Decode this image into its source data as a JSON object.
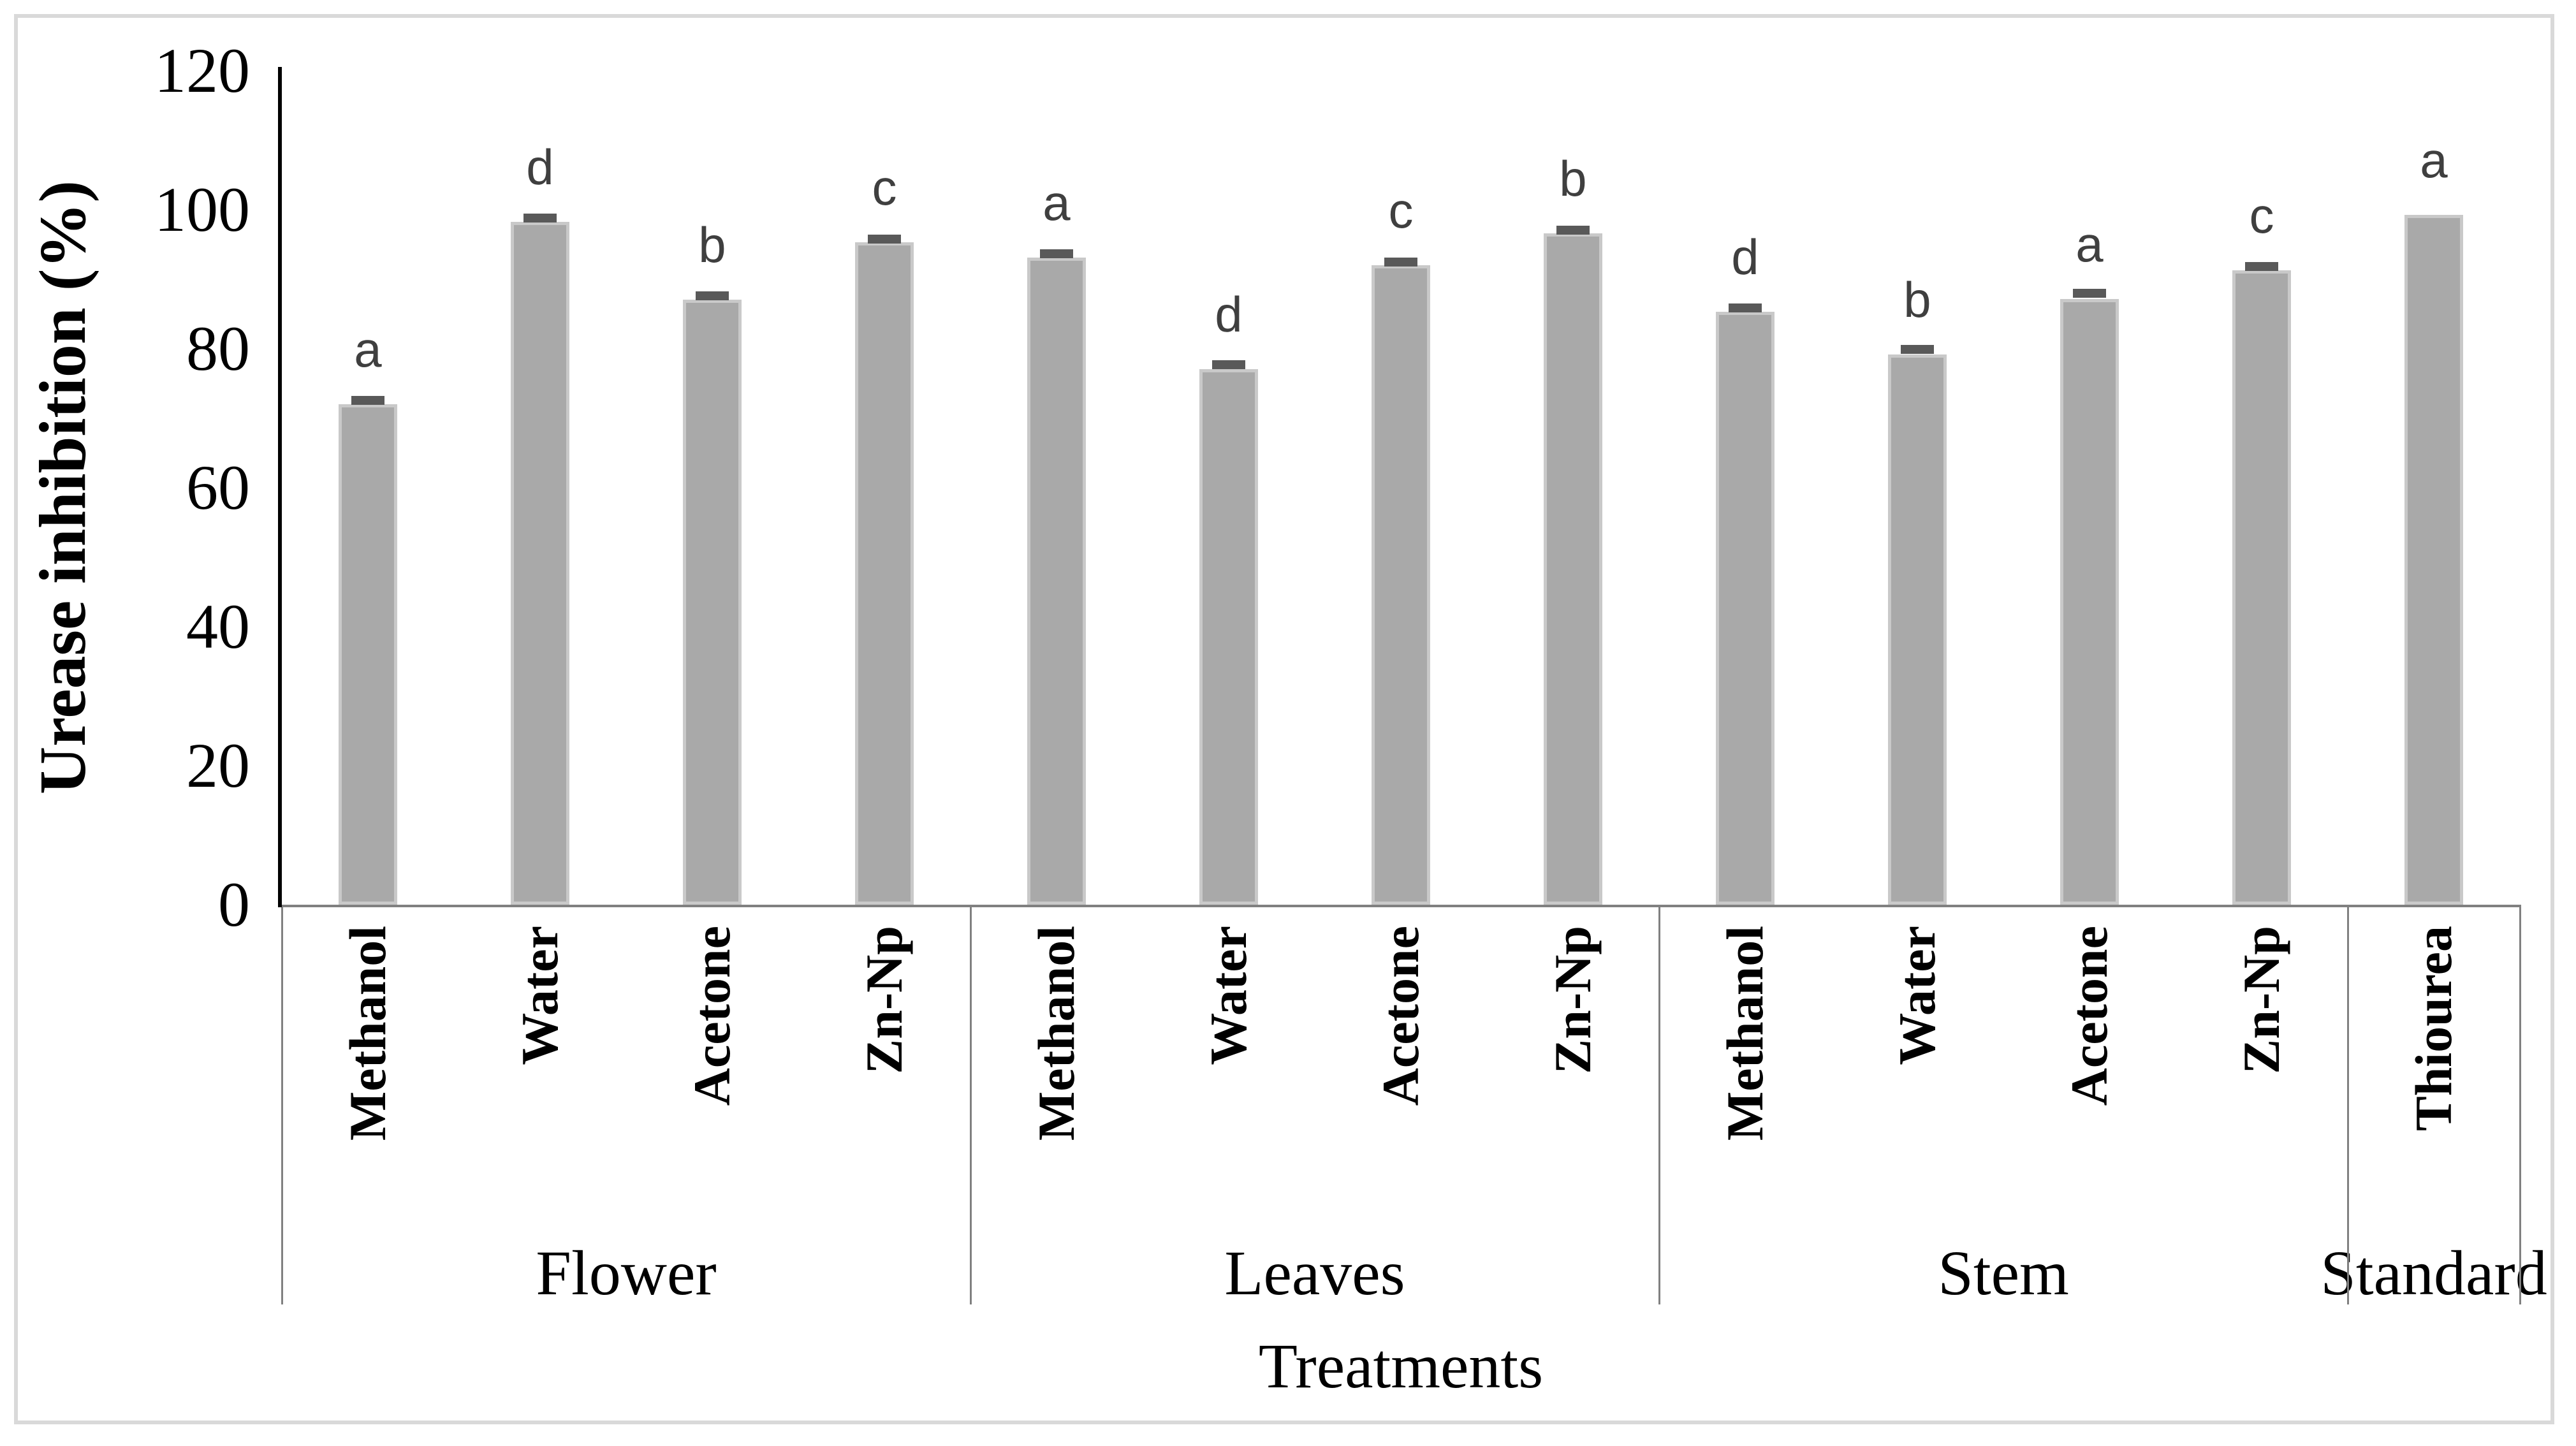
{
  "figure": {
    "background": "#ffffff",
    "border_color": "#d9d9d9"
  },
  "y_axis": {
    "title": "Urease inhibition (%)",
    "ticks": [
      "0",
      "20",
      "40",
      "60",
      "80",
      "100",
      "120"
    ],
    "tick_values": [
      0,
      20,
      40,
      60,
      80,
      100,
      120
    ],
    "min": 0,
    "max": 120
  },
  "x_axis": {
    "title": "Treatments"
  },
  "chart_data": {
    "type": "bar",
    "title": "",
    "xlabel": "Treatments",
    "ylabel": "Urease inhibition (%)",
    "ylim": [
      0,
      120
    ],
    "grid": false,
    "legend_position": "none",
    "groups": [
      {
        "label": "Flower",
        "categories": [
          "Methanol",
          "Water",
          "Acetone",
          "Zn-Np"
        ],
        "values": [
          72.0,
          98.3,
          87.1,
          95.3
        ],
        "letters": [
          "a",
          "d",
          "b",
          "c"
        ],
        "errors": [
          0.6,
          0.5,
          0.5,
          0.5
        ]
      },
      {
        "label": "Leaves",
        "categories": [
          "Methanol",
          "Water",
          "Acetone",
          "Zn-Np"
        ],
        "values": [
          93.1,
          77.1,
          92.0,
          96.6
        ],
        "letters": [
          "a",
          "d",
          "c",
          "b"
        ],
        "errors": [
          0.6,
          0.6,
          0.5,
          0.5
        ]
      },
      {
        "label": "Stem",
        "categories": [
          "Methanol",
          "Water",
          "Acetone",
          "Zn-Np"
        ],
        "values": [
          85.3,
          79.2,
          87.2,
          91.3
        ],
        "letters": [
          "d",
          "b",
          "a",
          "c"
        ],
        "errors": [
          0.6,
          0.7,
          0.8,
          0.5
        ]
      },
      {
        "label": "Standard",
        "categories": [
          "Thiourea"
        ],
        "values": [
          99.3
        ],
        "letters": [
          "a"
        ],
        "errors": [
          0
        ]
      }
    ],
    "colors": {
      "bar_fill": "#a9a9a9",
      "bar_border": "#c9c9c9",
      "error_cap": "#595959",
      "letter": "#3f3f3f",
      "y_axis_line": "#000000",
      "table_line": "#808080"
    }
  }
}
